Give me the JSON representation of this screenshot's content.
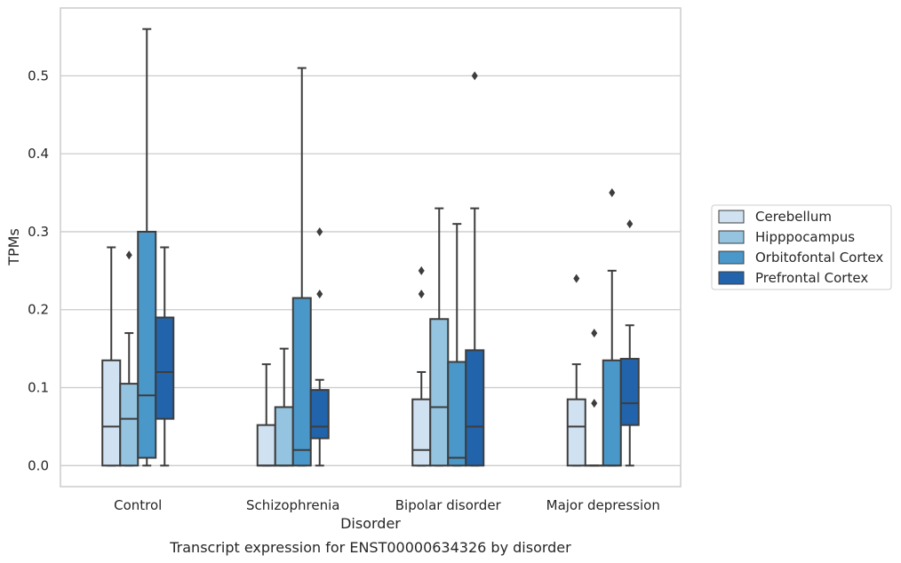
{
  "chart_data": {
    "type": "box",
    "caption": "Transcript expression for ENST00000634326 by disorder",
    "xlabel": "Disorder",
    "ylabel": "TPMs",
    "ylim": [
      -0.027,
      0.587
    ],
    "yticks": [
      "0.0",
      "0.1",
      "0.2",
      "0.3",
      "0.4",
      "0.5"
    ],
    "grid": true,
    "legend_position": "right",
    "categories": [
      "Control",
      "Schizophrenia",
      "Bipolar disorder",
      "Major depression"
    ],
    "series": [
      {
        "name": "Cerebellum",
        "color": "#d0e1f2",
        "boxes": [
          {
            "whislo": 0.0,
            "q1": 0.0,
            "med": 0.05,
            "q3": 0.135,
            "whishi": 0.28,
            "fliers": []
          },
          {
            "whislo": 0.0,
            "q1": 0.0,
            "med": 0.0,
            "q3": 0.052,
            "whishi": 0.13,
            "fliers": []
          },
          {
            "whislo": 0.0,
            "q1": 0.0,
            "med": 0.02,
            "q3": 0.085,
            "whishi": 0.12,
            "fliers": [
              0.22,
              0.25
            ]
          },
          {
            "whislo": 0.0,
            "q1": 0.0,
            "med": 0.05,
            "q3": 0.085,
            "whishi": 0.13,
            "fliers": [
              0.24
            ]
          }
        ]
      },
      {
        "name": "Hipppocampus",
        "color": "#94c4df",
        "boxes": [
          {
            "whislo": 0.0,
            "q1": 0.0,
            "med": 0.06,
            "q3": 0.105,
            "whishi": 0.17,
            "fliers": [
              0.27
            ]
          },
          {
            "whislo": 0.0,
            "q1": 0.0,
            "med": 0.0,
            "q3": 0.075,
            "whishi": 0.15,
            "fliers": []
          },
          {
            "whislo": 0.0,
            "q1": 0.0,
            "med": 0.075,
            "q3": 0.188,
            "whishi": 0.33,
            "fliers": []
          },
          {
            "whislo": 0.0,
            "q1": 0.0,
            "med": 0.0,
            "q3": 0.0,
            "whishi": 0.0,
            "fliers": [
              0.08,
              0.17
            ]
          }
        ]
      },
      {
        "name": "Orbitofontal Cortex",
        "color": "#4a98c9",
        "boxes": [
          {
            "whislo": 0.0,
            "q1": 0.01,
            "med": 0.09,
            "q3": 0.3,
            "whishi": 0.56,
            "fliers": []
          },
          {
            "whislo": 0.0,
            "q1": 0.0,
            "med": 0.02,
            "q3": 0.215,
            "whishi": 0.51,
            "fliers": []
          },
          {
            "whislo": 0.0,
            "q1": 0.0,
            "med": 0.01,
            "q3": 0.133,
            "whishi": 0.31,
            "fliers": []
          },
          {
            "whislo": 0.0,
            "q1": 0.0,
            "med": 0.0,
            "q3": 0.135,
            "whishi": 0.25,
            "fliers": [
              0.35
            ]
          }
        ]
      },
      {
        "name": "Prefrontal Cortex",
        "color": "#2164ab",
        "boxes": [
          {
            "whislo": 0.0,
            "q1": 0.06,
            "med": 0.12,
            "q3": 0.19,
            "whishi": 0.28,
            "fliers": []
          },
          {
            "whislo": 0.0,
            "q1": 0.035,
            "med": 0.05,
            "q3": 0.097,
            "whishi": 0.11,
            "fliers": [
              0.22,
              0.3
            ]
          },
          {
            "whislo": 0.0,
            "q1": 0.0,
            "med": 0.05,
            "q3": 0.148,
            "whishi": 0.33,
            "fliers": [
              0.5
            ]
          },
          {
            "whislo": 0.0,
            "q1": 0.052,
            "med": 0.08,
            "q3": 0.137,
            "whishi": 0.18,
            "fliers": [
              0.31
            ]
          }
        ]
      }
    ]
  }
}
